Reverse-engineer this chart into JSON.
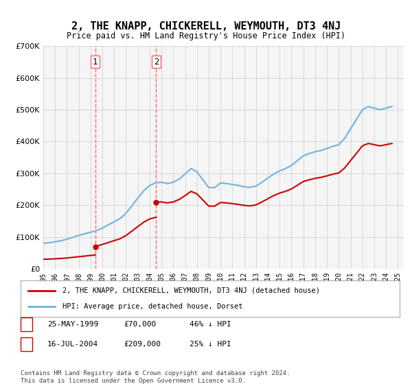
{
  "title": "2, THE KNAPP, CHICKERELL, WEYMOUTH, DT3 4NJ",
  "subtitle": "Price paid vs. HM Land Registry's House Price Index (HPI)",
  "ylabel_ticks": [
    "£0",
    "£100K",
    "£200K",
    "£300K",
    "£400K",
    "£500K",
    "£600K",
    "£700K"
  ],
  "ylim": [
    0,
    700000
  ],
  "xlim_start": 1995.0,
  "xlim_end": 2025.5,
  "hpi_color": "#6fb3e0",
  "price_color": "#cc0000",
  "vline1_x": 1999.4,
  "vline2_x": 2004.55,
  "vline_color": "#ff6666",
  "purchase1": {
    "date": "25-MAY-1999",
    "price": 70000,
    "label": "1",
    "x": 1999.4
  },
  "purchase2": {
    "date": "16-JUL-2004",
    "price": 209000,
    "label": "2",
    "x": 2004.55
  },
  "legend_line1": "2, THE KNAPP, CHICKERELL, WEYMOUTH, DT3 4NJ (detached house)",
  "legend_line2": "HPI: Average price, detached house, Dorset",
  "table_row1": [
    "1",
    "25-MAY-1999",
    "£70,000",
    "46% ↓ HPI"
  ],
  "table_row2": [
    "2",
    "16-JUL-2004",
    "£209,000",
    "25% ↓ HPI"
  ],
  "footnote": "Contains HM Land Registry data © Crown copyright and database right 2024.\nThis data is licensed under the Open Government Licence v3.0.",
  "background_color": "#ffffff",
  "plot_bg_color": "#f5f5f5"
}
